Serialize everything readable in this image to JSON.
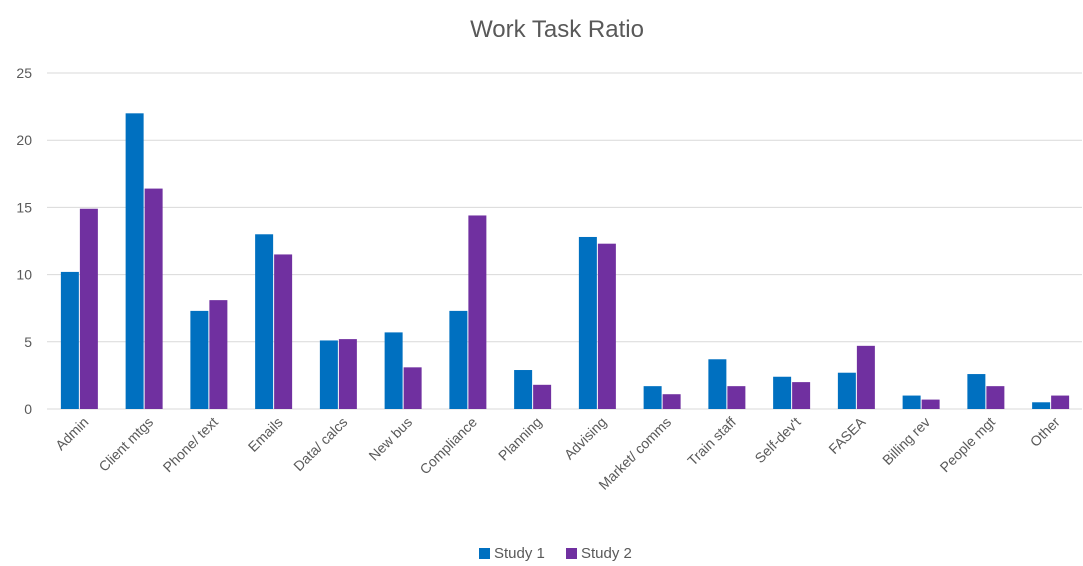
{
  "chart_data": {
    "type": "bar",
    "title": "Work Task Ratio",
    "xlabel": "",
    "ylabel": "",
    "ylim": [
      0,
      25
    ],
    "yticks": [
      0,
      5,
      10,
      15,
      20,
      25
    ],
    "grid": true,
    "legend_position": "bottom",
    "categories": [
      "Admin",
      "Client mtgs",
      "Phone/ text",
      "Emails",
      "Data/ calcs",
      "New bus",
      "Compliance",
      "Planning",
      "Advising",
      "Market/ comms",
      "Train staff",
      "Self-dev't",
      "FASEA",
      "Billing rev",
      "People mgt",
      "Other"
    ],
    "series": [
      {
        "name": "Study 1",
        "color": "#0070c0",
        "values": [
          10.2,
          22.0,
          7.3,
          13.0,
          5.1,
          5.7,
          7.3,
          2.9,
          12.8,
          1.7,
          3.7,
          2.4,
          2.7,
          1.0,
          2.6,
          0.5
        ]
      },
      {
        "name": "Study 2",
        "color": "#7030a0",
        "values": [
          14.9,
          16.4,
          8.1,
          11.5,
          5.2,
          3.1,
          14.4,
          1.8,
          12.3,
          1.1,
          1.7,
          2.0,
          4.7,
          0.7,
          1.7,
          1.0
        ]
      }
    ]
  },
  "colors": {
    "gridline": "#d9d9d9",
    "text": "#595959",
    "background": "#ffffff"
  }
}
